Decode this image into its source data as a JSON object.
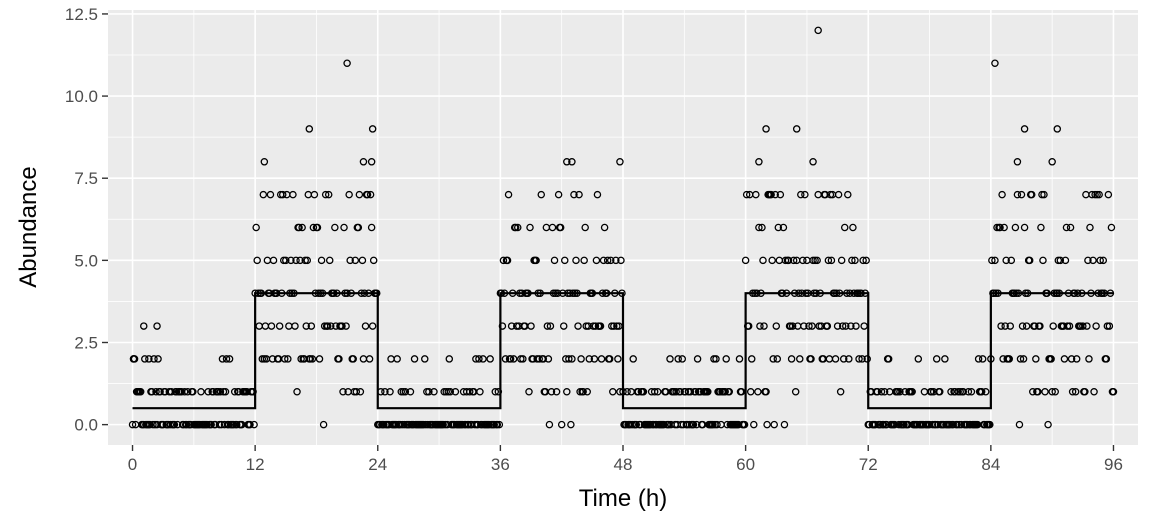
{
  "chart_data": {
    "type": "scatter",
    "title": "",
    "xlabel": "Time (h)",
    "ylabel": "Abundance",
    "xlim": [
      -2.4,
      98.4
    ],
    "ylim": [
      -0.62,
      12.62
    ],
    "x_ticks": [
      0,
      12,
      24,
      36,
      48,
      60,
      72,
      84,
      96
    ],
    "x_tick_labels": [
      "0",
      "12",
      "24",
      "36",
      "48",
      "60",
      "72",
      "84",
      "96"
    ],
    "y_ticks": [
      0,
      2.5,
      5,
      7.5,
      10,
      12.5
    ],
    "y_tick_labels": [
      "0.0",
      "2.5",
      "5.0",
      "7.5",
      "10.0",
      "12.5"
    ],
    "grid": true,
    "legend": "none",
    "background_color": "#ebebeb",
    "grid_color": "#ffffff",
    "point_color": "#000000",
    "line_color": "#000000",
    "step_line": {
      "name": "",
      "x": [
        0,
        12,
        12,
        24,
        24,
        36,
        36,
        48,
        48,
        60,
        60,
        72,
        72,
        84,
        84,
        96
      ],
      "y": [
        0.5,
        0.5,
        4,
        4,
        0.5,
        0.5,
        4,
        4,
        0.5,
        0.5,
        4,
        4,
        0.5,
        0.5,
        4,
        4
      ]
    },
    "points": {
      "name": "",
      "sample_interval_h": 0.1,
      "phase_means": [
        {
          "start": 0,
          "end": 12,
          "mean": 0.5
        },
        {
          "start": 12,
          "end": 24,
          "mean": 4
        },
        {
          "start": 24,
          "end": 36,
          "mean": 0.5
        },
        {
          "start": 36,
          "end": 48,
          "mean": 4
        },
        {
          "start": 48,
          "end": 60,
          "mean": 0.5
        },
        {
          "start": 60,
          "end": 72,
          "mean": 4
        },
        {
          "start": 72,
          "end": 84,
          "mean": 0.5
        },
        {
          "start": 84,
          "end": 96,
          "mean": 4
        }
      ],
      "notable_points": [
        {
          "x": 0.1,
          "y": 2
        },
        {
          "x": 1.1,
          "y": 3
        },
        {
          "x": 1.6,
          "y": 2
        },
        {
          "x": 2.4,
          "y": 3
        },
        {
          "x": 12.9,
          "y": 8
        },
        {
          "x": 17.3,
          "y": 9
        },
        {
          "x": 21.0,
          "y": 11
        },
        {
          "x": 22.6,
          "y": 8
        },
        {
          "x": 23.5,
          "y": 9
        },
        {
          "x": 23.4,
          "y": 8
        },
        {
          "x": 42.5,
          "y": 8
        },
        {
          "x": 43.0,
          "y": 8
        },
        {
          "x": 47.7,
          "y": 8
        },
        {
          "x": 61.3,
          "y": 8
        },
        {
          "x": 62.0,
          "y": 9
        },
        {
          "x": 65.0,
          "y": 9
        },
        {
          "x": 66.6,
          "y": 8
        },
        {
          "x": 67.1,
          "y": 12
        },
        {
          "x": 84.4,
          "y": 11
        },
        {
          "x": 86.6,
          "y": 8
        },
        {
          "x": 87.3,
          "y": 9
        },
        {
          "x": 90.0,
          "y": 8
        },
        {
          "x": 90.5,
          "y": 9
        }
      ]
    }
  }
}
